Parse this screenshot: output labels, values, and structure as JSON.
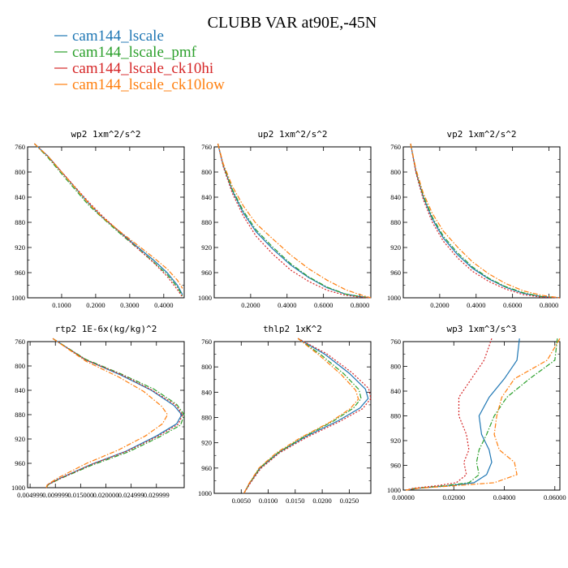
{
  "chart_data": {
    "type": "line",
    "title": "CLUBB VAR at90E,-45N",
    "legend": {
      "placement": "top-left",
      "entries": [
        {
          "name": "cam144_lscale",
          "color": "#1f77b4",
          "dash": "solid"
        },
        {
          "name": "cam144_lscale_pmf",
          "color": "#2ca02c",
          "dash": "dashdot"
        },
        {
          "name": "cam144_lscale_ck10hi",
          "color": "#d62728",
          "dash": "dotted"
        },
        {
          "name": "cam144_lscale_ck10low",
          "color": "#ff7f0e",
          "dash": "dashdot"
        }
      ]
    },
    "panels": [
      {
        "title": "wp2   1xm^2/s^2",
        "xlim": [
          0.0,
          0.46
        ],
        "xticks": [
          0.1,
          0.2,
          0.3,
          0.4
        ],
        "xtick_labels": [
          "0.1000",
          "0.2000",
          "0.3000",
          "0.4000"
        ],
        "ylim": [
          760,
          1000
        ],
        "yticks": [
          760,
          800,
          840,
          880,
          920,
          960,
          1000
        ],
        "ytick_labels": [
          "760",
          "800",
          "840",
          "880",
          "920",
          "960",
          "1000"
        ],
        "series": [
          {
            "name": "cam144_lscale",
            "x": [
              0.02,
              0.06,
              0.1,
              0.14,
              0.18,
              0.22,
              0.27,
              0.32,
              0.37,
              0.41,
              0.44,
              0.455
            ],
            "y": [
              755,
              775,
              800,
              825,
              850,
              872,
              895,
              918,
              940,
              960,
              980,
              995
            ]
          },
          {
            "name": "cam144_lscale_pmf",
            "x": [
              0.02,
              0.06,
              0.1,
              0.14,
              0.18,
              0.22,
              0.27,
              0.32,
              0.37,
              0.41,
              0.44,
              0.455
            ],
            "y": [
              755,
              777,
              803,
              828,
              853,
              873,
              897,
              920,
              943,
              963,
              983,
              997
            ]
          },
          {
            "name": "cam144_lscale_ck10hi",
            "x": [
              0.02,
              0.06,
              0.1,
              0.14,
              0.18,
              0.22,
              0.27,
              0.32,
              0.37,
              0.41,
              0.44,
              0.455
            ],
            "y": [
              755,
              775,
              800,
              824,
              848,
              870,
              895,
              920,
              944,
              966,
              987,
              999
            ]
          },
          {
            "name": "cam144_lscale_ck10low",
            "x": [
              0.02,
              0.06,
              0.1,
              0.14,
              0.18,
              0.22,
              0.27,
              0.32,
              0.37,
              0.41,
              0.44,
              0.455
            ],
            "y": [
              755,
              775,
              800,
              825,
              850,
              872,
              894,
              915,
              936,
              954,
              972,
              985
            ]
          }
        ]
      },
      {
        "title": "up2   1xm^2/s^2",
        "xlim": [
          0.0,
          0.86
        ],
        "xticks": [
          0.2,
          0.4,
          0.6,
          0.8
        ],
        "xtick_labels": [
          "0.2000",
          "0.4000",
          "0.6000",
          "0.8000"
        ],
        "ylim": [
          760,
          1000
        ],
        "yticks": [
          760,
          800,
          840,
          880,
          920,
          960,
          1000
        ],
        "ytick_labels": [
          "760",
          "800",
          "840",
          "880",
          "920",
          "960",
          "1000"
        ],
        "series": [
          {
            "name": "cam144_lscale",
            "x": [
              0.02,
              0.05,
              0.1,
              0.16,
              0.23,
              0.32,
              0.42,
              0.52,
              0.62,
              0.72,
              0.8,
              0.86
            ],
            "y": [
              755,
              790,
              830,
              865,
              895,
              922,
              948,
              968,
              984,
              994,
              998,
              1000
            ]
          },
          {
            "name": "cam144_lscale_pmf",
            "x": [
              0.02,
              0.05,
              0.1,
              0.16,
              0.23,
              0.32,
              0.42,
              0.52,
              0.62,
              0.72,
              0.8,
              0.86
            ],
            "y": [
              755,
              789,
              828,
              862,
              892,
              919,
              946,
              967,
              983,
              994,
              998,
              1000
            ]
          },
          {
            "name": "cam144_lscale_ck10hi",
            "x": [
              0.02,
              0.05,
              0.1,
              0.16,
              0.23,
              0.32,
              0.42,
              0.52,
              0.62,
              0.72,
              0.8,
              0.86
            ],
            "y": [
              755,
              792,
              834,
              870,
              902,
              930,
              956,
              974,
              988,
              996,
              999,
              1000
            ]
          },
          {
            "name": "cam144_lscale_ck10low",
            "x": [
              0.02,
              0.05,
              0.1,
              0.16,
              0.23,
              0.32,
              0.42,
              0.52,
              0.62,
              0.72,
              0.8,
              0.86
            ],
            "y": [
              755,
              787,
              823,
              854,
              882,
              906,
              932,
              954,
              972,
              987,
              995,
              1000
            ]
          }
        ]
      },
      {
        "title": "vp2   1xm^2/s^2",
        "xlim": [
          0.0,
          0.86
        ],
        "xticks": [
          0.2,
          0.4,
          0.6,
          0.8
        ],
        "xtick_labels": [
          "0.2000",
          "0.4000",
          "0.6000",
          "0.8000"
        ],
        "ylim": [
          760,
          1000
        ],
        "yticks": [
          760,
          800,
          840,
          880,
          920,
          960,
          1000
        ],
        "ytick_labels": [
          "760",
          "800",
          "840",
          "880",
          "920",
          "960",
          "1000"
        ],
        "series": [
          {
            "name": "cam144_lscale",
            "x": [
              0.04,
              0.07,
              0.11,
              0.16,
              0.22,
              0.3,
              0.38,
              0.47,
              0.56,
              0.66,
              0.76,
              0.86
            ],
            "y": [
              755,
              800,
              840,
              875,
              905,
              932,
              953,
              970,
              983,
              993,
              998,
              1000
            ]
          },
          {
            "name": "cam144_lscale_pmf",
            "x": [
              0.04,
              0.07,
              0.11,
              0.16,
              0.22,
              0.3,
              0.38,
              0.47,
              0.56,
              0.66,
              0.76,
              0.86
            ],
            "y": [
              755,
              798,
              838,
              872,
              902,
              929,
              951,
              969,
              982,
              992,
              998,
              1000
            ]
          },
          {
            "name": "cam144_lscale_ck10hi",
            "x": [
              0.04,
              0.07,
              0.11,
              0.16,
              0.22,
              0.3,
              0.38,
              0.47,
              0.56,
              0.66,
              0.76,
              0.86
            ],
            "y": [
              755,
              802,
              844,
              880,
              910,
              937,
              958,
              974,
              986,
              995,
              999,
              1000
            ]
          },
          {
            "name": "cam144_lscale_ck10low",
            "x": [
              0.04,
              0.07,
              0.11,
              0.16,
              0.22,
              0.3,
              0.38,
              0.47,
              0.56,
              0.66,
              0.76,
              0.86
            ],
            "y": [
              755,
              796,
              834,
              866,
              894,
              920,
              943,
              962,
              977,
              989,
              996,
              1000
            ]
          }
        ]
      },
      {
        "title": "rtp2   1E-6x(kg/kg)^2",
        "xlim": [
          0.0045,
          0.0355
        ],
        "xticks": [
          0.005,
          0.01,
          0.015,
          0.02,
          0.025,
          0.03
        ],
        "xtick_labels": [
          "0.004999",
          "0.009999",
          "0.015000",
          "0.020000",
          "0.024999",
          "0.029999"
        ],
        "ylim": [
          760,
          1000
        ],
        "yticks": [
          760,
          800,
          840,
          880,
          920,
          960,
          1000
        ],
        "ytick_labels": [
          "760",
          "800",
          "840",
          "880",
          "920",
          "960",
          "1000"
        ],
        "series": [
          {
            "name": "cam144_lscale",
            "x": [
              0.0095,
              0.016,
              0.023,
              0.029,
              0.0335,
              0.035,
              0.034,
              0.03,
              0.024,
              0.017,
              0.0108,
              0.0085,
              0.0082
            ],
            "y": [
              755,
              790,
              815,
              840,
              865,
              880,
              895,
              915,
              940,
              962,
              985,
              995,
              1000
            ]
          },
          {
            "name": "cam144_lscale_pmf",
            "x": [
              0.0095,
              0.016,
              0.023,
              0.0295,
              0.034,
              0.0355,
              0.0348,
              0.0305,
              0.0245,
              0.0172,
              0.011,
              0.0086,
              0.0082
            ],
            "y": [
              755,
              789,
              813,
              838,
              863,
              880,
              897,
              917,
              941,
              963,
              985,
              995,
              1000
            ]
          },
          {
            "name": "cam144_lscale_ck10hi",
            "x": [
              0.0095,
              0.016,
              0.023,
              0.029,
              0.0338,
              0.0352,
              0.0343,
              0.0302,
              0.0242,
              0.0171,
              0.0109,
              0.0085,
              0.0082
            ],
            "y": [
              755,
              790,
              814,
              839,
              864,
              880,
              896,
              916,
              940,
              962,
              985,
              995,
              1000
            ]
          },
          {
            "name": "cam144_lscale_ck10low",
            "x": [
              0.0095,
              0.016,
              0.0225,
              0.0275,
              0.031,
              0.0322,
              0.0312,
              0.0278,
              0.0225,
              0.0162,
              0.0105,
              0.0084,
              0.0082
            ],
            "y": [
              755,
              792,
              818,
              842,
              866,
              880,
              895,
              915,
              938,
              960,
              984,
              995,
              1000
            ]
          }
        ]
      },
      {
        "title": "thlp2   1xK^2",
        "xlim": [
          0.0,
          0.029
        ],
        "xticks": [
          0.005,
          0.01,
          0.015,
          0.02,
          0.025
        ],
        "xtick_labels": [
          "0.0050",
          "0.0100",
          "0.0150",
          "0.0200",
          "0.0250"
        ],
        "ylim": [
          760,
          1000
        ],
        "yticks": [
          760,
          800,
          840,
          880,
          920,
          960,
          1000
        ],
        "ytick_labels": [
          "760",
          "800",
          "840",
          "880",
          "920",
          "960",
          "1000"
        ],
        "series": [
          {
            "name": "cam144_lscale",
            "x": [
              0.0155,
              0.0205,
              0.025,
              0.028,
              0.0285,
              0.027,
              0.023,
              0.017,
              0.012,
              0.0085,
              0.0065,
              0.0055
            ],
            "y": [
              755,
              780,
              810,
              835,
              850,
              865,
              885,
              910,
              935,
              960,
              985,
              1000
            ]
          },
          {
            "name": "cam144_lscale_pmf",
            "x": [
              0.0155,
              0.0198,
              0.024,
              0.0268,
              0.0272,
              0.0258,
              0.022,
              0.0165,
              0.0118,
              0.0084,
              0.0065,
              0.0055
            ],
            "y": [
              755,
              781,
              811,
              836,
              850,
              865,
              886,
              911,
              936,
              960,
              985,
              1000
            ]
          },
          {
            "name": "cam144_lscale_ck10hi",
            "x": [
              0.0155,
              0.0208,
              0.0255,
              0.0286,
              0.029,
              0.0275,
              0.0233,
              0.0172,
              0.0121,
              0.0086,
              0.0066,
              0.0055
            ],
            "y": [
              755,
              779,
              809,
              834,
              850,
              866,
              886,
              911,
              936,
              961,
              985,
              1000
            ]
          },
          {
            "name": "cam144_lscale_ck10low",
            "x": [
              0.0155,
              0.0195,
              0.0235,
              0.0262,
              0.0267,
              0.0252,
              0.0215,
              0.016,
              0.0115,
              0.0083,
              0.0064,
              0.0055
            ],
            "y": [
              755,
              782,
              812,
              837,
              851,
              866,
              887,
              912,
              936,
              960,
              985,
              1000
            ]
          }
        ]
      },
      {
        "title": "wp3   1xm^3/s^3",
        "xlim": [
          0.0,
          0.062
        ],
        "xticks": [
          0.0,
          0.02,
          0.04,
          0.06
        ],
        "xtick_labels": [
          "0.00000",
          "0.02000",
          "0.04000",
          "0.06000"
        ],
        "ylim": [
          760,
          1000
        ],
        "yticks": [
          760,
          800,
          840,
          880,
          920,
          960,
          1000
        ],
        "ytick_labels": [
          "760",
          "800",
          "840",
          "880",
          "920",
          "960",
          "1000"
        ],
        "series": [
          {
            "name": "cam144_lscale",
            "x": [
              0.046,
              0.045,
              0.04,
              0.034,
              0.03,
              0.031,
              0.034,
              0.035,
              0.033,
              0.028,
              0.018,
              0.006,
              0.001
            ],
            "y": [
              755,
              790,
              820,
              850,
              880,
              910,
              935,
              955,
              975,
              988,
              993,
              997,
              1000
            ]
          },
          {
            "name": "cam144_lscale_pmf",
            "x": [
              0.061,
              0.06,
              0.05,
              0.041,
              0.036,
              0.033,
              0.03,
              0.029,
              0.03,
              0.026,
              0.016,
              0.005,
              0.001
            ],
            "y": [
              755,
              790,
              820,
              850,
              880,
              910,
              935,
              955,
              975,
              988,
              993,
              997,
              1000
            ]
          },
          {
            "name": "cam144_lscale_ck10hi",
            "x": [
              0.035,
              0.032,
              0.027,
              0.022,
              0.022,
              0.025,
              0.026,
              0.024,
              0.025,
              0.021,
              0.013,
              0.004,
              0.001
            ],
            "y": [
              755,
              790,
              820,
              850,
              880,
              910,
              935,
              955,
              975,
              988,
              993,
              997,
              1000
            ]
          },
          {
            "name": "cam144_lscale_ck10low",
            "x": [
              0.062,
              0.057,
              0.044,
              0.039,
              0.037,
              0.036,
              0.038,
              0.044,
              0.045,
              0.036,
              0.02,
              0.006,
              0.001
            ],
            "y": [
              755,
              790,
              820,
              850,
              880,
              910,
              935,
              955,
              975,
              988,
              993,
              997,
              1000
            ]
          }
        ]
      }
    ]
  }
}
